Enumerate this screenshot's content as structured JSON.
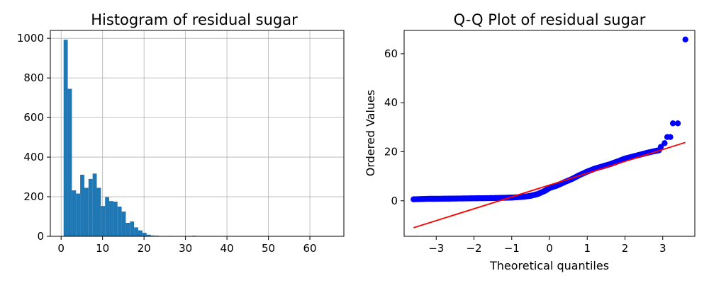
{
  "chart_data": [
    {
      "type": "bar",
      "title": "Histogram of residual sugar",
      "xlabel": "",
      "ylabel": "",
      "xlim": [
        -2.6,
        68.2
      ],
      "ylim": [
        0,
        1040
      ],
      "grid": true,
      "color": "#1f77b4",
      "xticks": [
        0,
        10,
        20,
        30,
        40,
        50,
        60
      ],
      "yticks": [
        0,
        200,
        400,
        600,
        800,
        1000
      ],
      "bin_width": 1.0,
      "bins": [
        {
          "x": 0.6,
          "count": 993
        },
        {
          "x": 1.6,
          "count": 745
        },
        {
          "x": 2.6,
          "count": 232
        },
        {
          "x": 3.6,
          "count": 216
        },
        {
          "x": 4.6,
          "count": 311
        },
        {
          "x": 5.6,
          "count": 245
        },
        {
          "x": 6.6,
          "count": 290
        },
        {
          "x": 7.6,
          "count": 317
        },
        {
          "x": 8.6,
          "count": 245
        },
        {
          "x": 9.6,
          "count": 153
        },
        {
          "x": 10.6,
          "count": 198
        },
        {
          "x": 11.6,
          "count": 178
        },
        {
          "x": 12.6,
          "count": 175
        },
        {
          "x": 13.6,
          "count": 150
        },
        {
          "x": 14.6,
          "count": 125
        },
        {
          "x": 15.6,
          "count": 68
        },
        {
          "x": 16.6,
          "count": 75
        },
        {
          "x": 17.6,
          "count": 45
        },
        {
          "x": 18.6,
          "count": 30
        },
        {
          "x": 19.6,
          "count": 18
        },
        {
          "x": 20.6,
          "count": 8
        },
        {
          "x": 21.6,
          "count": 4
        },
        {
          "x": 22.6,
          "count": 3
        },
        {
          "x": 23.6,
          "count": 1
        },
        {
          "x": 25.6,
          "count": 2
        },
        {
          "x": 31.6,
          "count": 3
        },
        {
          "x": 65.2,
          "count": 1
        }
      ]
    },
    {
      "type": "scatter",
      "title": "Q-Q Plot of residual sugar",
      "xlabel": "Theoretical quantiles",
      "ylabel": "Ordered Values",
      "xlim": [
        -3.85,
        3.85
      ],
      "ylim": [
        -14.5,
        69.5
      ],
      "grid": false,
      "point_color": "#0000ff",
      "line_color": "#ff0000",
      "xticks": [
        -3,
        -2,
        -1,
        0,
        1,
        2,
        3
      ],
      "xtick_labels": [
        "−3",
        "−2",
        "−1",
        "0",
        "1",
        "2",
        "3"
      ],
      "yticks": [
        0,
        20,
        40,
        60
      ],
      "fit_line": {
        "x": [
          -3.6,
          3.6
        ],
        "y": [
          -11.0,
          23.8
        ]
      },
      "quantile_curve": {
        "x": [
          -3.6,
          -3.4,
          -3.2,
          -3.0,
          -2.5,
          -2.0,
          -1.5,
          -1.0,
          -0.7,
          -0.5,
          -0.3,
          -0.1,
          0.0,
          0.2,
          0.4,
          0.6,
          0.8,
          1.0,
          1.2,
          1.4,
          1.6,
          1.8,
          2.0,
          2.2,
          2.4,
          2.6,
          2.8,
          2.9
        ],
        "y": [
          0.6,
          0.7,
          0.8,
          0.8,
          0.9,
          1.0,
          1.1,
          1.3,
          1.6,
          2.0,
          2.8,
          4.2,
          5.2,
          6.2,
          7.6,
          8.9,
          10.5,
          11.9,
          13.1,
          14.0,
          14.9,
          16.0,
          17.2,
          18.0,
          18.8,
          19.6,
          20.3,
          20.6
        ]
      },
      "outliers": [
        {
          "x": 2.95,
          "y": 22.0
        },
        {
          "x": 3.05,
          "y": 23.5
        },
        {
          "x": 3.12,
          "y": 26.0
        },
        {
          "x": 3.2,
          "y": 26.0
        },
        {
          "x": 3.27,
          "y": 31.6
        },
        {
          "x": 3.4,
          "y": 31.6
        },
        {
          "x": 3.6,
          "y": 65.8
        }
      ]
    }
  ]
}
